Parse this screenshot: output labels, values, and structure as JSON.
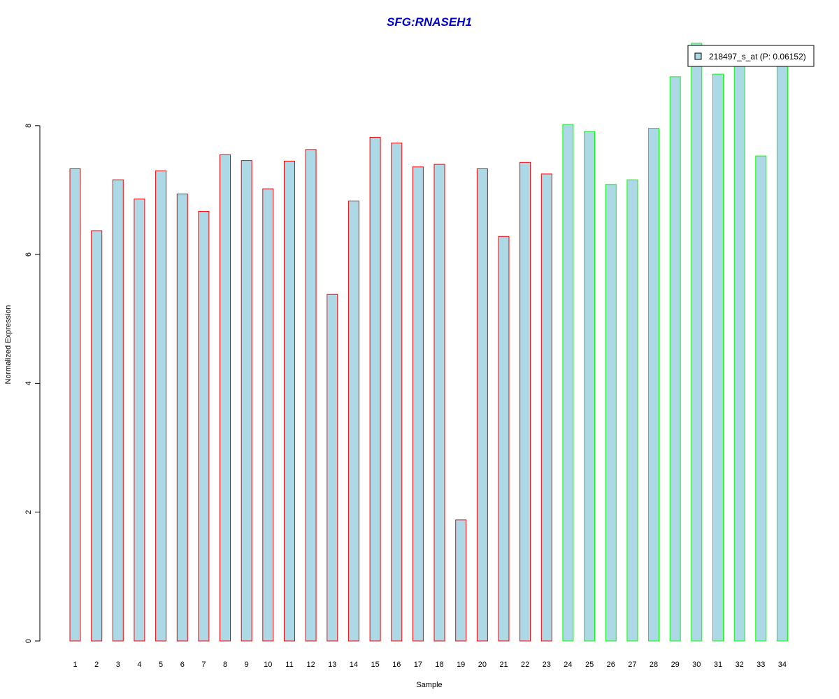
{
  "chart_data": {
    "type": "bar",
    "title": "SFG:RNASEH1",
    "xlabel": "Sample",
    "ylabel": "Normalized Expression",
    "categories": [
      "1",
      "2",
      "3",
      "4",
      "5",
      "6",
      "7",
      "8",
      "9",
      "10",
      "11",
      "12",
      "13",
      "14",
      "15",
      "16",
      "17",
      "18",
      "19",
      "20",
      "21",
      "22",
      "23",
      "24",
      "25",
      "26",
      "27",
      "28",
      "29",
      "30",
      "31",
      "32",
      "33",
      "34"
    ],
    "values": [
      7.33,
      6.37,
      7.16,
      6.86,
      7.3,
      6.94,
      6.67,
      7.55,
      7.46,
      7.02,
      7.45,
      7.63,
      5.38,
      6.83,
      7.82,
      7.73,
      7.36,
      7.4,
      1.88,
      7.33,
      6.28,
      7.43,
      7.25,
      8.02,
      7.91,
      7.09,
      7.16,
      7.96,
      8.76,
      9.28,
      8.8,
      9.0,
      7.53,
      8.98
    ],
    "groups": [
      "red",
      "red",
      "red",
      "red",
      "red",
      "red",
      "red",
      "red",
      "red",
      "red",
      "red",
      "red",
      "red",
      "red",
      "red",
      "red",
      "red",
      "red",
      "red",
      "red",
      "red",
      "red",
      "red",
      "green",
      "green",
      "green",
      "green",
      "green",
      "green",
      "green",
      "green",
      "green",
      "green",
      "green"
    ],
    "y_ticks": [
      "0",
      "2",
      "4",
      "6",
      "8"
    ],
    "ylim": [
      0,
      9.3
    ],
    "legend": {
      "label": "218497_s_at (P: 0.06152)",
      "position": "top-right"
    },
    "colors": {
      "bar_fill": "#add8e6",
      "group_red_border": "#ff0000",
      "group_green_border": "#00ff00",
      "title": "#0000cd",
      "axis": "#000000"
    },
    "grid": false
  }
}
